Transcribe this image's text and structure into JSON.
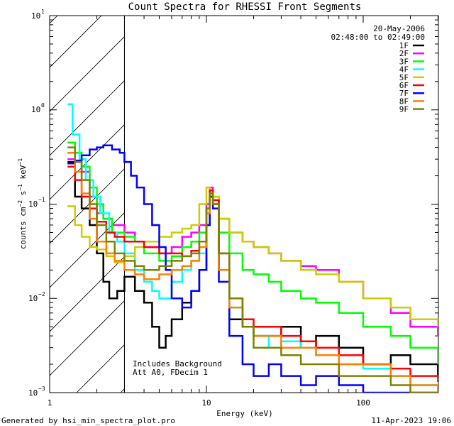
{
  "chart_data": {
    "type": "line",
    "title": "Count Spectra for RHESSI Front Segments",
    "xlabel": "Energy (keV)",
    "ylabel": "counts cm-2 s-1 keV-1",
    "ylabel_parts": {
      "base": "counts cm",
      "exp1": "−2",
      "mid": " s",
      "exp2": "−1",
      "tail": " keV",
      "exp3": "−1"
    },
    "xscale": "log",
    "yscale": "log",
    "xlim": [
      1,
      300
    ],
    "ylim": [
      0.001,
      10
    ],
    "x_tick_labels": [
      "1",
      "10",
      "100"
    ],
    "y_tick_labels": [
      {
        "base": "10",
        "exp": "−3"
      },
      {
        "base": "10",
        "exp": "−2"
      },
      {
        "base": "10",
        "exp": "−1"
      },
      {
        "base": "10",
        "exp": "0"
      },
      {
        "base": "10",
        "exp": "1"
      }
    ],
    "date": "20-May-2006",
    "time_range": "02:48:00 to 02:49:00",
    "shaded_region_max_kev": 3,
    "annotations": [
      "Includes Background",
      "Att A0, FDecim 1"
    ],
    "series": [
      {
        "name": "1F",
        "color": "#000000",
        "points": [
          [
            1.3,
            0.28
          ],
          [
            1.45,
            0.12
          ],
          [
            1.6,
            0.09
          ],
          [
            1.8,
            0.06
          ],
          [
            2.0,
            0.03
          ],
          [
            2.2,
            0.015
          ],
          [
            2.4,
            0.01
          ],
          [
            2.7,
            0.012
          ],
          [
            3.0,
            0.017
          ],
          [
            3.5,
            0.012
          ],
          [
            4.0,
            0.009
          ],
          [
            4.5,
            0.005
          ],
          [
            5.0,
            0.003
          ],
          [
            5.5,
            0.004
          ],
          [
            6.0,
            0.006
          ],
          [
            7.0,
            0.009
          ],
          [
            8.0,
            0.012
          ],
          [
            9.0,
            0.02
          ],
          [
            10.0,
            0.06
          ],
          [
            10.5,
            0.14
          ],
          [
            11.0,
            0.1
          ],
          [
            12.0,
            0.02
          ],
          [
            14.0,
            0.006
          ],
          [
            17.0,
            0.005
          ],
          [
            20.0,
            0.004
          ],
          [
            25.0,
            0.004
          ],
          [
            30.0,
            0.005
          ],
          [
            40.0,
            0.003
          ],
          [
            50.0,
            0.004
          ],
          [
            70.0,
            0.003
          ],
          [
            100.0,
            0.002
          ],
          [
            150.0,
            0.0025
          ],
          [
            200.0,
            0.002
          ],
          [
            300.0,
            0.0015
          ]
        ]
      },
      {
        "name": "2F",
        "color": "#ff00ff",
        "points": [
          [
            1.3,
            0.3
          ],
          [
            1.45,
            0.28
          ],
          [
            1.6,
            0.22
          ],
          [
            1.8,
            0.12
          ],
          [
            2.0,
            0.08
          ],
          [
            2.2,
            0.07
          ],
          [
            2.5,
            0.06
          ],
          [
            3.0,
            0.05
          ],
          [
            3.5,
            0.04
          ],
          [
            4.0,
            0.035
          ],
          [
            5.0,
            0.03
          ],
          [
            6.0,
            0.035
          ],
          [
            7.0,
            0.045
          ],
          [
            8.0,
            0.05
          ],
          [
            9.0,
            0.06
          ],
          [
            10.0,
            0.1
          ],
          [
            10.5,
            0.15
          ],
          [
            11.0,
            0.11
          ],
          [
            12.0,
            0.07
          ],
          [
            14.0,
            0.05
          ],
          [
            17.0,
            0.04
          ],
          [
            20.0,
            0.035
          ],
          [
            25.0,
            0.03
          ],
          [
            30.0,
            0.025
          ],
          [
            40.0,
            0.022
          ],
          [
            50.0,
            0.02
          ],
          [
            70.0,
            0.015
          ],
          [
            100.0,
            0.01
          ],
          [
            150.0,
            0.007
          ],
          [
            200.0,
            0.005
          ],
          [
            300.0,
            0.004
          ]
        ]
      },
      {
        "name": "3F",
        "color": "#00ff00",
        "points": [
          [
            1.3,
            0.45
          ],
          [
            1.45,
            0.35
          ],
          [
            1.6,
            0.25
          ],
          [
            1.8,
            0.15
          ],
          [
            2.0,
            0.1
          ],
          [
            2.2,
            0.07
          ],
          [
            2.5,
            0.05
          ],
          [
            3.0,
            0.045
          ],
          [
            3.5,
            0.04
          ],
          [
            4.0,
            0.03
          ],
          [
            5.0,
            0.025
          ],
          [
            6.0,
            0.028
          ],
          [
            7.0,
            0.035
          ],
          [
            8.0,
            0.04
          ],
          [
            9.0,
            0.05
          ],
          [
            10.0,
            0.09
          ],
          [
            10.5,
            0.13
          ],
          [
            11.0,
            0.1
          ],
          [
            12.0,
            0.05
          ],
          [
            14.0,
            0.03
          ],
          [
            17.0,
            0.02
          ],
          [
            20.0,
            0.018
          ],
          [
            25.0,
            0.015
          ],
          [
            30.0,
            0.012
          ],
          [
            40.0,
            0.01
          ],
          [
            50.0,
            0.009
          ],
          [
            70.0,
            0.007
          ],
          [
            100.0,
            0.005
          ],
          [
            150.0,
            0.004
          ],
          [
            200.0,
            0.003
          ],
          [
            300.0,
            0.002
          ]
        ]
      },
      {
        "name": "4F",
        "color": "#00ffff",
        "points": [
          [
            1.3,
            1.15
          ],
          [
            1.4,
            0.55
          ],
          [
            1.55,
            0.3
          ],
          [
            1.7,
            0.18
          ],
          [
            1.9,
            0.12
          ],
          [
            2.1,
            0.08
          ],
          [
            2.4,
            0.05
          ],
          [
            2.7,
            0.04
          ],
          [
            3.0,
            0.03
          ],
          [
            3.5,
            0.02
          ],
          [
            4.0,
            0.015
          ],
          [
            4.5,
            0.012
          ],
          [
            5.0,
            0.01
          ],
          [
            6.0,
            0.015
          ],
          [
            7.0,
            0.02
          ],
          [
            8.0,
            0.025
          ],
          [
            9.0,
            0.03
          ],
          [
            10.0,
            0.08
          ],
          [
            10.5,
            0.14
          ],
          [
            11.0,
            0.12
          ],
          [
            12.0,
            0.03
          ],
          [
            14.0,
            0.008
          ],
          [
            17.0,
            0.005
          ],
          [
            20.0,
            0.004
          ],
          [
            25.0,
            0.003
          ],
          [
            30.0,
            0.0035
          ],
          [
            40.0,
            0.003
          ],
          [
            50.0,
            0.0025
          ],
          [
            70.0,
            0.002
          ],
          [
            100.0,
            0.0018
          ],
          [
            150.0,
            0.0015
          ],
          [
            200.0,
            0.0012
          ],
          [
            300.0,
            0.001
          ]
        ]
      },
      {
        "name": "5F",
        "color": "#cccc00",
        "points": [
          [
            1.3,
            0.095
          ],
          [
            1.45,
            0.06
          ],
          [
            1.6,
            0.045
          ],
          [
            1.8,
            0.035
          ],
          [
            2.0,
            0.033
          ],
          [
            2.3,
            0.028
          ],
          [
            2.6,
            0.024
          ],
          [
            3.0,
            0.028
          ],
          [
            3.5,
            0.035
          ],
          [
            4.0,
            0.04
          ],
          [
            5.0,
            0.045
          ],
          [
            6.0,
            0.05
          ],
          [
            7.0,
            0.055
          ],
          [
            8.0,
            0.06
          ],
          [
            9.0,
            0.1
          ],
          [
            10.0,
            0.15
          ],
          [
            10.5,
            0.14
          ],
          [
            11.0,
            0.12
          ],
          [
            12.0,
            0.07
          ],
          [
            14.0,
            0.05
          ],
          [
            17.0,
            0.04
          ],
          [
            20.0,
            0.035
          ],
          [
            25.0,
            0.03
          ],
          [
            30.0,
            0.025
          ],
          [
            40.0,
            0.02
          ],
          [
            50.0,
            0.018
          ],
          [
            70.0,
            0.015
          ],
          [
            100.0,
            0.01
          ],
          [
            150.0,
            0.008
          ],
          [
            200.0,
            0.006
          ],
          [
            300.0,
            0.005
          ]
        ]
      },
      {
        "name": "6F",
        "color": "#ff0000",
        "points": [
          [
            1.3,
            0.25
          ],
          [
            1.45,
            0.18
          ],
          [
            1.6,
            0.12
          ],
          [
            1.8,
            0.09
          ],
          [
            2.0,
            0.065
          ],
          [
            2.3,
            0.05
          ],
          [
            2.6,
            0.045
          ],
          [
            3.0,
            0.04
          ],
          [
            3.5,
            0.04
          ],
          [
            4.0,
            0.035
          ],
          [
            5.0,
            0.03
          ],
          [
            6.0,
            0.03
          ],
          [
            7.0,
            0.028
          ],
          [
            8.0,
            0.032
          ],
          [
            9.0,
            0.04
          ],
          [
            10.0,
            0.09
          ],
          [
            10.5,
            0.14
          ],
          [
            11.0,
            0.11
          ],
          [
            12.0,
            0.03
          ],
          [
            14.0,
            0.01
          ],
          [
            17.0,
            0.006
          ],
          [
            20.0,
            0.005
          ],
          [
            25.0,
            0.005
          ],
          [
            30.0,
            0.004
          ],
          [
            40.0,
            0.0035
          ],
          [
            50.0,
            0.003
          ],
          [
            70.0,
            0.0025
          ],
          [
            100.0,
            0.002
          ],
          [
            150.0,
            0.0018
          ],
          [
            200.0,
            0.0015
          ],
          [
            300.0,
            0.0013
          ]
        ]
      },
      {
        "name": "7F",
        "color": "#0000ff",
        "points": [
          [
            1.3,
            0.27
          ],
          [
            1.45,
            0.29
          ],
          [
            1.6,
            0.33
          ],
          [
            1.8,
            0.38
          ],
          [
            2.0,
            0.4
          ],
          [
            2.2,
            0.42
          ],
          [
            2.5,
            0.38
          ],
          [
            2.8,
            0.35
          ],
          [
            3.0,
            0.28
          ],
          [
            3.3,
            0.2
          ],
          [
            3.6,
            0.15
          ],
          [
            4.0,
            0.1
          ],
          [
            4.5,
            0.06
          ],
          [
            5.0,
            0.035
          ],
          [
            5.5,
            0.02
          ],
          [
            6.0,
            0.01
          ],
          [
            7.0,
            0.008
          ],
          [
            8.0,
            0.012
          ],
          [
            9.0,
            0.02
          ],
          [
            10.0,
            0.06
          ],
          [
            10.5,
            0.12
          ],
          [
            11.0,
            0.09
          ],
          [
            12.0,
            0.015
          ],
          [
            14.0,
            0.004
          ],
          [
            17.0,
            0.002
          ],
          [
            20.0,
            0.0015
          ],
          [
            25.0,
            0.002
          ],
          [
            30.0,
            0.0015
          ],
          [
            40.0,
            0.0012
          ],
          [
            50.0,
            0.0015
          ],
          [
            70.0,
            0.0012
          ],
          [
            100.0,
            0.001
          ],
          [
            150.0,
            0.001
          ],
          [
            200.0,
            0.001
          ],
          [
            300.0,
            0.001
          ]
        ]
      },
      {
        "name": "8F",
        "color": "#ff8000",
        "points": [
          [
            1.3,
            0.35
          ],
          [
            1.45,
            0.22
          ],
          [
            1.6,
            0.13
          ],
          [
            1.8,
            0.07
          ],
          [
            2.0,
            0.04
          ],
          [
            2.3,
            0.03
          ],
          [
            2.6,
            0.025
          ],
          [
            3.0,
            0.02
          ],
          [
            3.5,
            0.018
          ],
          [
            4.0,
            0.016
          ],
          [
            5.0,
            0.018
          ],
          [
            6.0,
            0.02
          ],
          [
            7.0,
            0.022
          ],
          [
            8.0,
            0.025
          ],
          [
            9.0,
            0.035
          ],
          [
            10.0,
            0.08
          ],
          [
            10.5,
            0.13
          ],
          [
            11.0,
            0.1
          ],
          [
            12.0,
            0.02
          ],
          [
            14.0,
            0.008
          ],
          [
            17.0,
            0.005
          ],
          [
            20.0,
            0.004
          ],
          [
            25.0,
            0.004
          ],
          [
            30.0,
            0.003
          ],
          [
            40.0,
            0.003
          ],
          [
            50.0,
            0.0025
          ],
          [
            70.0,
            0.002
          ],
          [
            100.0,
            0.002
          ],
          [
            150.0,
            0.0015
          ],
          [
            200.0,
            0.0012
          ],
          [
            300.0,
            0.001
          ]
        ]
      },
      {
        "name": "9F",
        "color": "#808000",
        "points": [
          [
            1.3,
            0.4
          ],
          [
            1.45,
            0.28
          ],
          [
            1.6,
            0.18
          ],
          [
            1.8,
            0.1
          ],
          [
            2.0,
            0.06
          ],
          [
            2.3,
            0.04
          ],
          [
            2.6,
            0.03
          ],
          [
            3.0,
            0.025
          ],
          [
            3.5,
            0.022
          ],
          [
            4.0,
            0.02
          ],
          [
            5.0,
            0.022
          ],
          [
            6.0,
            0.025
          ],
          [
            7.0,
            0.028
          ],
          [
            8.0,
            0.03
          ],
          [
            9.0,
            0.04
          ],
          [
            10.0,
            0.09
          ],
          [
            10.5,
            0.13
          ],
          [
            11.0,
            0.1
          ],
          [
            12.0,
            0.03
          ],
          [
            14.0,
            0.01
          ],
          [
            17.0,
            0.005
          ],
          [
            20.0,
            0.003
          ],
          [
            25.0,
            0.003
          ],
          [
            30.0,
            0.0025
          ],
          [
            40.0,
            0.002
          ],
          [
            50.0,
            0.002
          ],
          [
            70.0,
            0.0015
          ],
          [
            100.0,
            0.0015
          ],
          [
            150.0,
            0.0012
          ],
          [
            200.0,
            0.001
          ],
          [
            300.0,
            0.001
          ]
        ]
      }
    ]
  },
  "footer": {
    "left": "Generated by hsi_min_spectra_plot.pro",
    "right": "11-Apr-2023 19:06"
  }
}
